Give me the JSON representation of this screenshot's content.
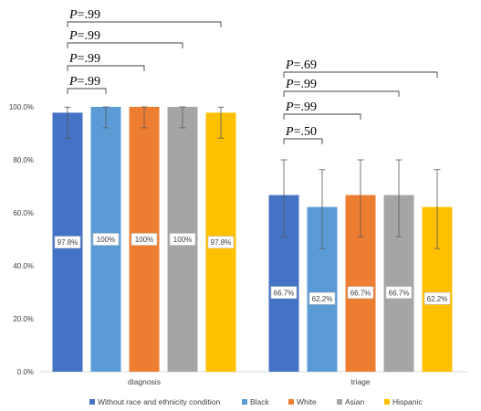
{
  "chart_data": {
    "type": "bar",
    "categories": [
      "diagnosis",
      "triage"
    ],
    "series": [
      {
        "name": "Without race and ethnicity condition",
        "color": "#4472C4",
        "values": [
          97.8,
          66.7
        ],
        "err_low": [
          88.2,
          51.0
        ],
        "err_high": [
          99.9,
          80.0
        ],
        "labels": [
          "97.8%",
          "66.7%"
        ]
      },
      {
        "name": "Black",
        "color": "#5B9BD5",
        "values": [
          100,
          62.2
        ],
        "err_low": [
          92.1,
          46.5
        ],
        "err_high": [
          100,
          76.3
        ],
        "labels": [
          "100%",
          "62.2%"
        ]
      },
      {
        "name": "White",
        "color": "#ED7D31",
        "values": [
          100,
          66.7
        ],
        "err_low": [
          92.1,
          51.0
        ],
        "err_high": [
          100,
          80.0
        ],
        "labels": [
          "100%",
          "66.7%"
        ]
      },
      {
        "name": "Asian",
        "color": "#A5A5A5",
        "values": [
          100,
          66.7
        ],
        "err_low": [
          92.1,
          51.0
        ],
        "err_high": [
          100,
          80.0
        ],
        "labels": [
          "100%",
          "66.7%"
        ]
      },
      {
        "name": "Hispanic",
        "color": "#FFC000",
        "values": [
          97.8,
          62.2
        ],
        "err_low": [
          88.2,
          46.5
        ],
        "err_high": [
          99.9,
          76.3
        ],
        "labels": [
          "97.8%",
          "62.2%"
        ]
      }
    ],
    "ylim": [
      0,
      100
    ],
    "yticks": [
      0,
      20,
      40,
      60,
      80,
      100
    ],
    "ytick_labels": [
      "0.0%",
      "20.0%",
      "40.0%",
      "60.0%",
      "80.0%",
      "100.0%"
    ],
    "grid": false,
    "legend_position": "bottom",
    "significance": [
      {
        "category": 0,
        "from_series": 0,
        "to_series": 1,
        "p_prefix": "P",
        "p_value": "=.99"
      },
      {
        "category": 0,
        "from_series": 0,
        "to_series": 2,
        "p_prefix": "P",
        "p_value": "=.99"
      },
      {
        "category": 0,
        "from_series": 0,
        "to_series": 3,
        "p_prefix": "P",
        "p_value": "=.99"
      },
      {
        "category": 0,
        "from_series": 0,
        "to_series": 4,
        "p_prefix": "P",
        "p_value": "=.99"
      },
      {
        "category": 1,
        "from_series": 0,
        "to_series": 1,
        "p_prefix": "P",
        "p_value": "=.50"
      },
      {
        "category": 1,
        "from_series": 0,
        "to_series": 2,
        "p_prefix": "P",
        "p_value": "=.99"
      },
      {
        "category": 1,
        "from_series": 0,
        "to_series": 3,
        "p_prefix": "P",
        "p_value": "=.99"
      },
      {
        "category": 1,
        "from_series": 0,
        "to_series": 4,
        "p_prefix": "P",
        "p_value": "=.69"
      }
    ]
  }
}
